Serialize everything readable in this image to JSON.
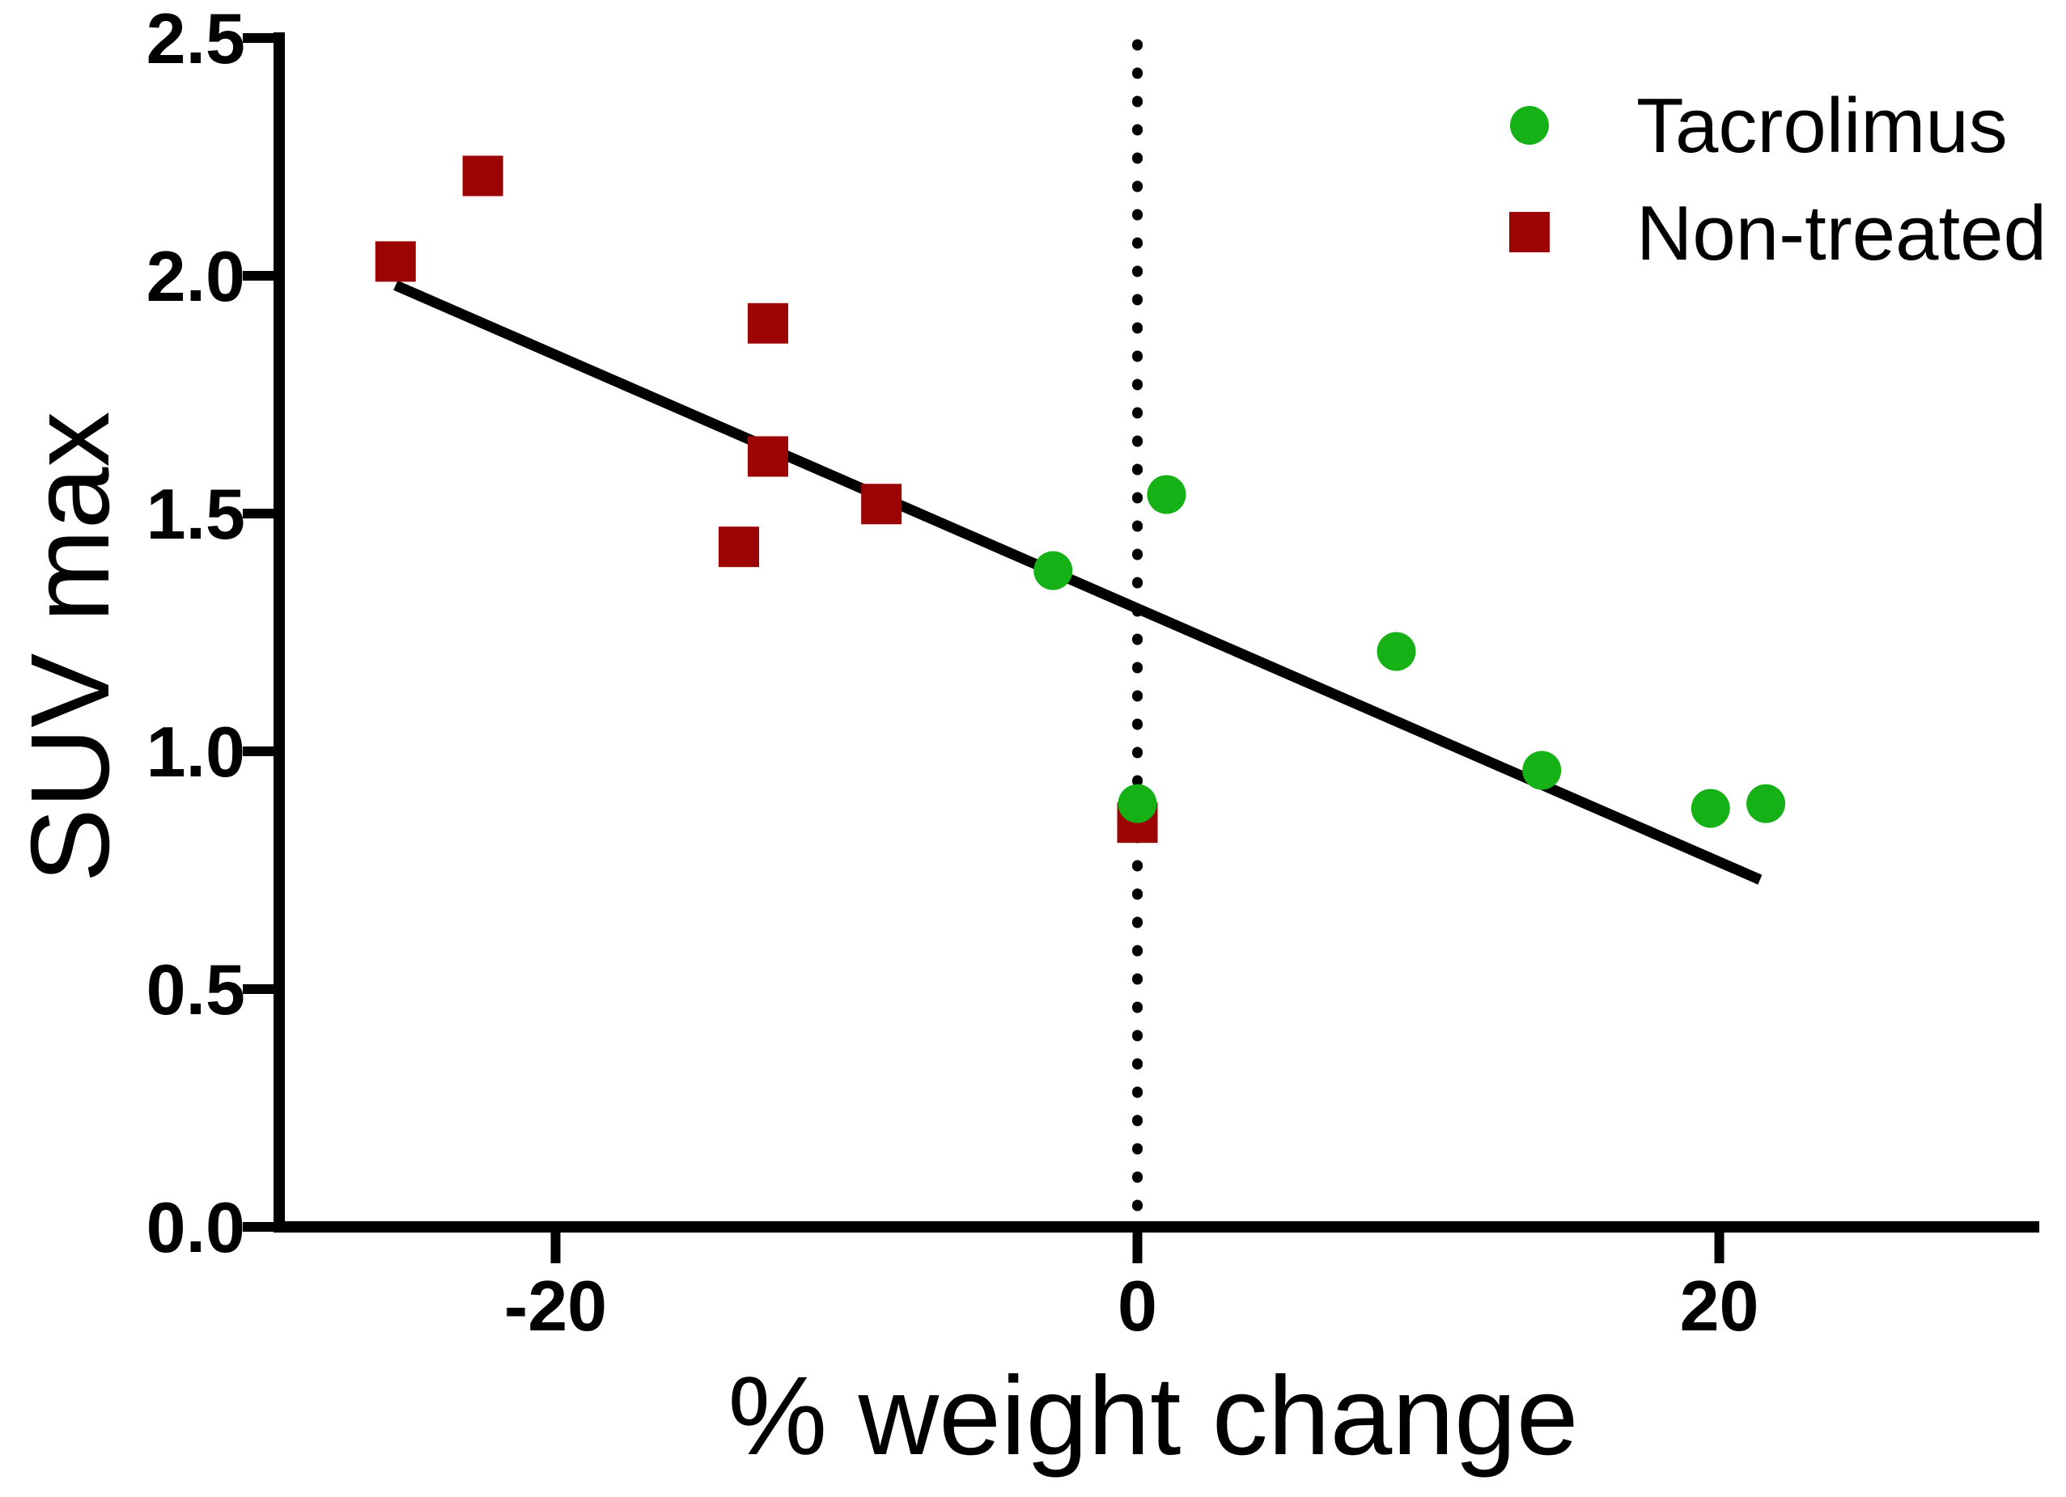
{
  "figure": {
    "background": "#FFFFFF",
    "axis_color": "#000000"
  },
  "chart_data": {
    "type": "scatter",
    "title": "",
    "xlabel": "% weight change",
    "ylabel": "SUV max",
    "xlim": [
      -29.5,
      31
    ],
    "ylim": [
      0,
      2.5
    ],
    "xticks": {
      "values": [
        -20,
        0,
        20
      ],
      "labels": [
        "-20",
        "0",
        "20"
      ]
    },
    "yticks": {
      "values": [
        0,
        0.5,
        1,
        1.5,
        2,
        2.5
      ],
      "labels": [
        "0.0",
        "0.5",
        "1.0",
        "1.5",
        "2.0",
        "2.5"
      ]
    },
    "grid": false,
    "legend_position": "top-right",
    "zero_reference_line": {
      "x": 0,
      "style": "dotted",
      "color": "#000000"
    },
    "trend_line": {
      "from": [
        -25.5,
        1.98
      ],
      "to": [
        21.4,
        0.73
      ],
      "color": "#000000"
    },
    "series": [
      {
        "name": "Tacrolimus",
        "marker": "circle",
        "color": "#16B116",
        "points": [
          [
            -2.9,
            1.38
          ],
          [
            0.0,
            0.89
          ],
          [
            1.0,
            1.54
          ],
          [
            8.9,
            1.21
          ],
          [
            13.9,
            0.96
          ],
          [
            19.7,
            0.88
          ],
          [
            21.6,
            0.89
          ]
        ]
      },
      {
        "name": "Non-treated",
        "marker": "square",
        "color": "#9C0404",
        "points": [
          [
            -25.5,
            2.03
          ],
          [
            -22.5,
            2.21
          ],
          [
            -13.7,
            1.43
          ],
          [
            -12.7,
            1.9
          ],
          [
            -12.7,
            1.62
          ],
          [
            -8.8,
            1.52
          ],
          [
            0.0,
            0.85
          ]
        ]
      }
    ]
  }
}
